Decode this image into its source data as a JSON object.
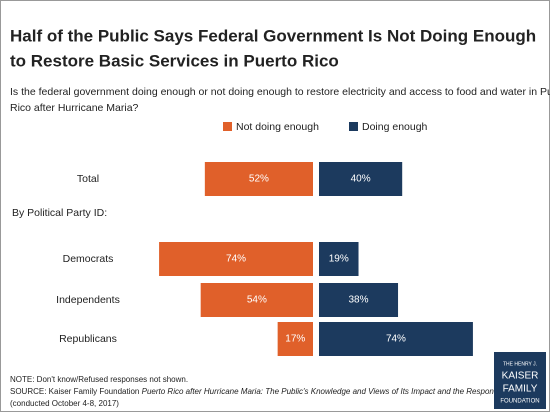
{
  "chart_data": {
    "type": "diverging_bar",
    "title": [
      "Half of the Public Says Federal Government Is Not Doing Enough",
      "to Restore Basic Services in Puerto Rico"
    ],
    "subtitle": [
      "Is the federal government doing enough or not doing enough to restore electricity and access to food and water in Puerto",
      "Rico after Hurricane Maria?"
    ],
    "categories": [
      "Total",
      "Democrats",
      "Independents",
      "Republicans"
    ],
    "group_label": "By Political Party ID:",
    "series": [
      {
        "name": "Not doing enough",
        "color": "#e0602a",
        "values": [
          52,
          74,
          54,
          17
        ],
        "value_labels": [
          "52%",
          "74%",
          "54%",
          "17%"
        ]
      },
      {
        "name": "Doing enough",
        "color": "#1c3a5e",
        "values": [
          40,
          19,
          38,
          74
        ],
        "value_labels": [
          "40%",
          "19%",
          "38%",
          "74%"
        ]
      }
    ],
    "note": "NOTE: Don't know/Refused responses not shown.",
    "source": "SOURCE: Kaiser Family Foundation",
    "source_title": "Puerto Rico after Hurricane Maria: The Public's Knowledge and Views of Its Impact and the Response",
    "source_dates": "(conducted October 4-8, 2017)",
    "logo": [
      "THE HENRY J.",
      "KAISER",
      "FAMILY",
      "FOUNDATION"
    ]
  }
}
